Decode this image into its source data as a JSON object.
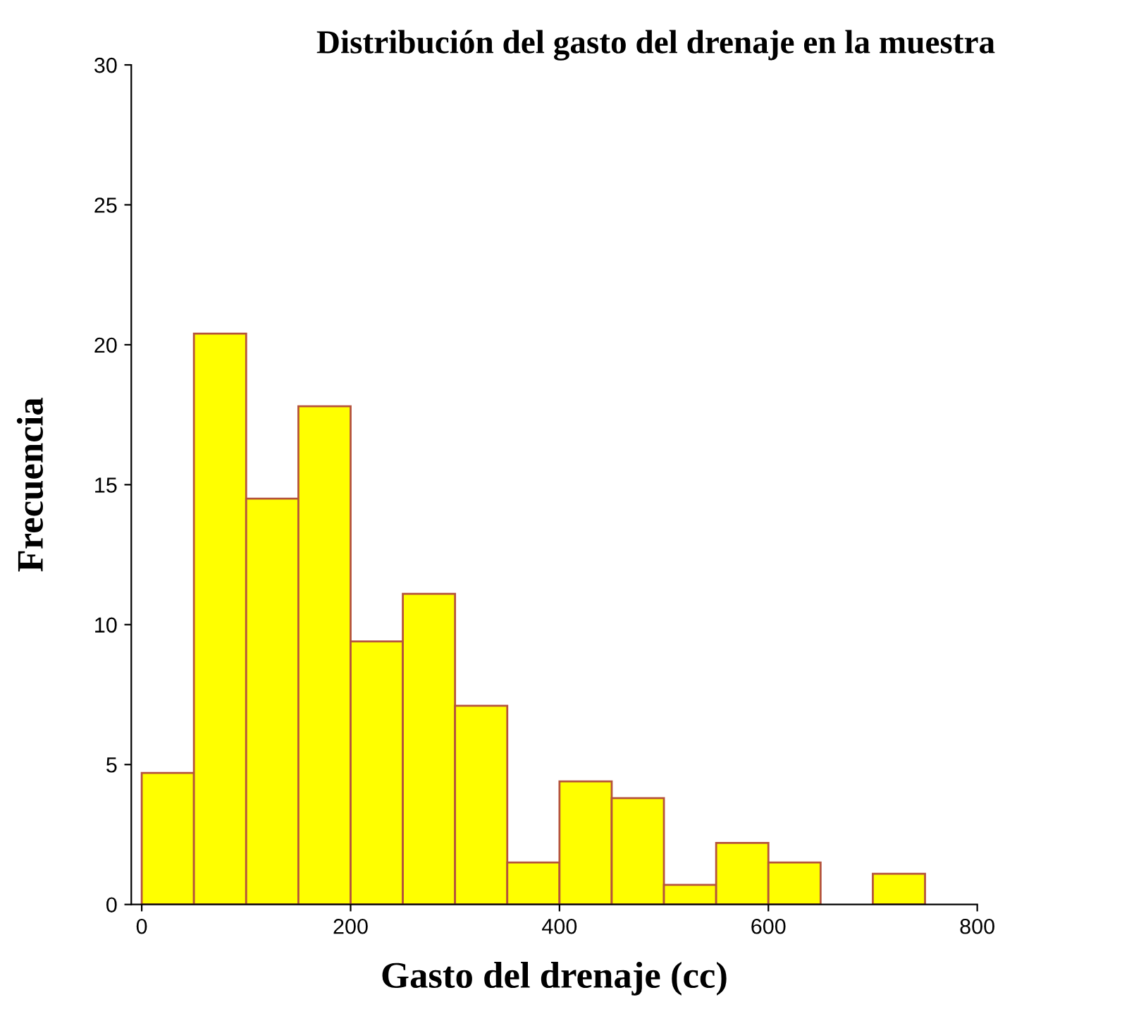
{
  "chart_data": {
    "type": "histogram",
    "title": "Distribución del gasto del drenaje en la muestra",
    "xlabel": "Gasto del drenaje (cc)",
    "ylabel": "Frecuencia",
    "bins": [
      0,
      50,
      100,
      150,
      200,
      250,
      300,
      350,
      400,
      450,
      500,
      550,
      600,
      650,
      700,
      750
    ],
    "values": [
      4.7,
      20.4,
      14.5,
      17.8,
      9.4,
      11.1,
      7.1,
      1.5,
      4.4,
      3.8,
      0.7,
      2.2,
      1.5,
      0,
      1.1
    ],
    "color": "#ffff00",
    "xlim": [
      -10,
      800
    ],
    "xticks": [
      0,
      200,
      400,
      600,
      800
    ],
    "ylim": [
      0,
      30
    ],
    "yticks": [
      0,
      5,
      10,
      15,
      20,
      25,
      30
    ],
    "grid": false,
    "legend": false
  }
}
